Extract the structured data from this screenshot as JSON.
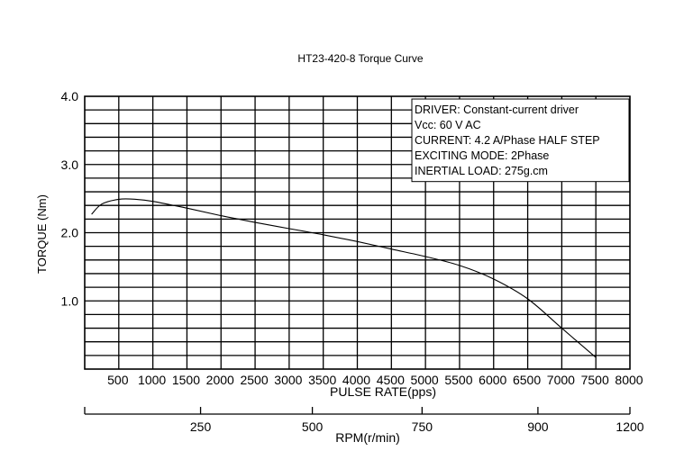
{
  "chart_data": {
    "type": "line",
    "title": "HT23-420-8 Torque Curve",
    "xlabel": "PULSE RATE(pps)",
    "ylabel": "TORQUE (Nm)",
    "secondary_xlabel": "RPM(r/min)",
    "xlim": [
      0,
      8000
    ],
    "ylim": [
      0,
      4.0
    ],
    "x_ticks": [
      500,
      1000,
      1500,
      2000,
      2500,
      3000,
      3500,
      4000,
      4500,
      5000,
      5500,
      6000,
      6500,
      7000,
      7500,
      8000
    ],
    "x_tick_labels": [
      "500",
      "1000",
      "1500",
      "2000",
      "2500",
      "3000",
      "3500",
      "4000",
      "4500",
      "5000",
      "5500",
      "6000",
      "6500",
      "7000",
      "7500",
      "8000"
    ],
    "y_ticks": [
      1.0,
      2.0,
      3.0,
      4.0
    ],
    "y_tick_labels": [
      "1.0",
      "2.0",
      "3.0",
      "4.0"
    ],
    "rpm_ticks": [
      {
        "label": "250",
        "pps": 1700
      },
      {
        "label": "500",
        "pps": 3340
      },
      {
        "label": "750",
        "pps": 4950
      },
      {
        "label": "900",
        "pps": 6650
      },
      {
        "label": "1200",
        "pps": 8000
      }
    ],
    "grid": true,
    "legend": "none",
    "annotations": [
      "DRIVER: Constant-current driver",
      "Vcc: 60 V AC",
      "CURRENT: 4.2 A/Phase HALF STEP",
      "EXCITING MODE: 2Phase",
      "INERTIAL LOAD: 275g.cm"
    ],
    "series": [
      {
        "x": [
          100,
          250,
          500,
          750,
          1000,
          1500,
          2000,
          2500,
          3000,
          3500,
          4000,
          4500,
          5000,
          5500,
          6000,
          6500,
          7000,
          7500
        ],
        "values": [
          2.27,
          2.42,
          2.49,
          2.49,
          2.46,
          2.36,
          2.25,
          2.15,
          2.06,
          1.97,
          1.87,
          1.76,
          1.65,
          1.52,
          1.32,
          1.03,
          0.6,
          0.17
        ]
      }
    ]
  }
}
